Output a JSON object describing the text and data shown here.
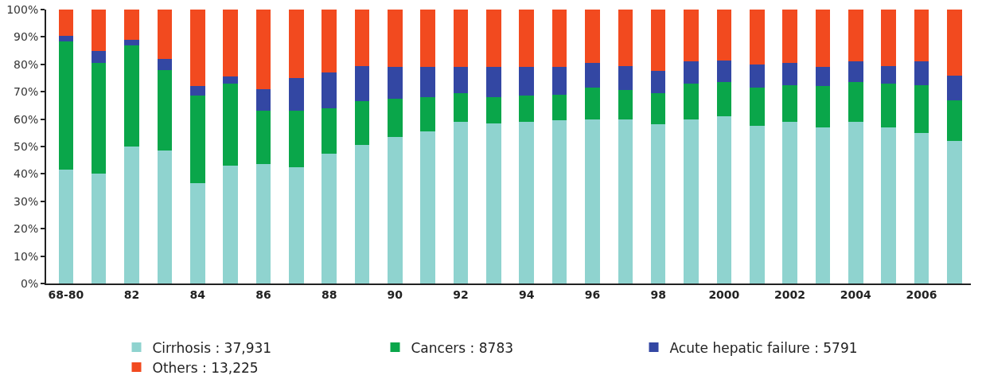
{
  "chart_data": {
    "type": "bar",
    "stacked": true,
    "categories": [
      "68-80",
      null,
      "82",
      null,
      "84",
      null,
      "86",
      null,
      "88",
      null,
      "90",
      null,
      "92",
      null,
      "94",
      null,
      "96",
      null,
      "98",
      null,
      "2000",
      null,
      "2002",
      null,
      "2004",
      null,
      "2006",
      null
    ],
    "series": [
      {
        "name": "Cirrhosis : 37,931",
        "color": "#8fd3cf",
        "values": [
          41.5,
          40,
          50,
          48.5,
          36.5,
          43,
          43.5,
          42.5,
          47.5,
          50.5,
          53.5,
          55.5,
          59,
          58.5,
          59,
          59.5,
          60,
          60,
          58,
          60,
          61,
          57.5,
          59,
          57,
          59,
          57,
          55,
          52
        ]
      },
      {
        "name": "Cancers : 8783",
        "color": "#0aa64a",
        "values": [
          47,
          40.5,
          37,
          29.5,
          32,
          30,
          19.5,
          20.5,
          16.5,
          16,
          14,
          12.5,
          10.5,
          9.5,
          9.5,
          9.5,
          11.5,
          10.5,
          11.5,
          13,
          12.5,
          14,
          13.5,
          15,
          14.5,
          16,
          17.5,
          15
        ]
      },
      {
        "name": "Acute hepatic failure : 5791",
        "color": "#3347a3",
        "values": [
          2,
          4.5,
          2,
          4,
          3.5,
          2.5,
          8,
          12,
          13,
          13,
          11.5,
          11,
          9.5,
          11,
          10.5,
          10,
          9,
          9,
          8,
          8,
          8,
          8.5,
          8,
          7,
          7.5,
          6.5,
          8.5,
          9
        ]
      },
      {
        "name": "Others : 13,225",
        "color": "#f24a1f",
        "values": [
          9.5,
          15,
          11,
          18,
          28,
          24.5,
          29,
          25,
          23,
          20.5,
          21,
          21,
          21,
          21,
          21,
          21,
          19.5,
          20.5,
          22.5,
          19,
          18.5,
          20,
          19.5,
          21,
          19,
          20.5,
          19,
          24
        ]
      }
    ],
    "ylim": [
      0,
      100
    ],
    "yticks": [
      {
        "value": 0,
        "label": "0%"
      },
      {
        "value": 10,
        "label": "10%"
      },
      {
        "value": 20,
        "label": "20%"
      },
      {
        "value": 30,
        "label": "30%"
      },
      {
        "value": 40,
        "label": "40%"
      },
      {
        "value": 50,
        "label": "50%"
      },
      {
        "value": 60,
        "label": "60%"
      },
      {
        "value": 70,
        "label": "70%"
      },
      {
        "value": 80,
        "label": "80%"
      },
      {
        "value": 90,
        "label": "90%"
      },
      {
        "value": 100,
        "label": "100%"
      }
    ],
    "grid": false,
    "legend": "bottom"
  }
}
